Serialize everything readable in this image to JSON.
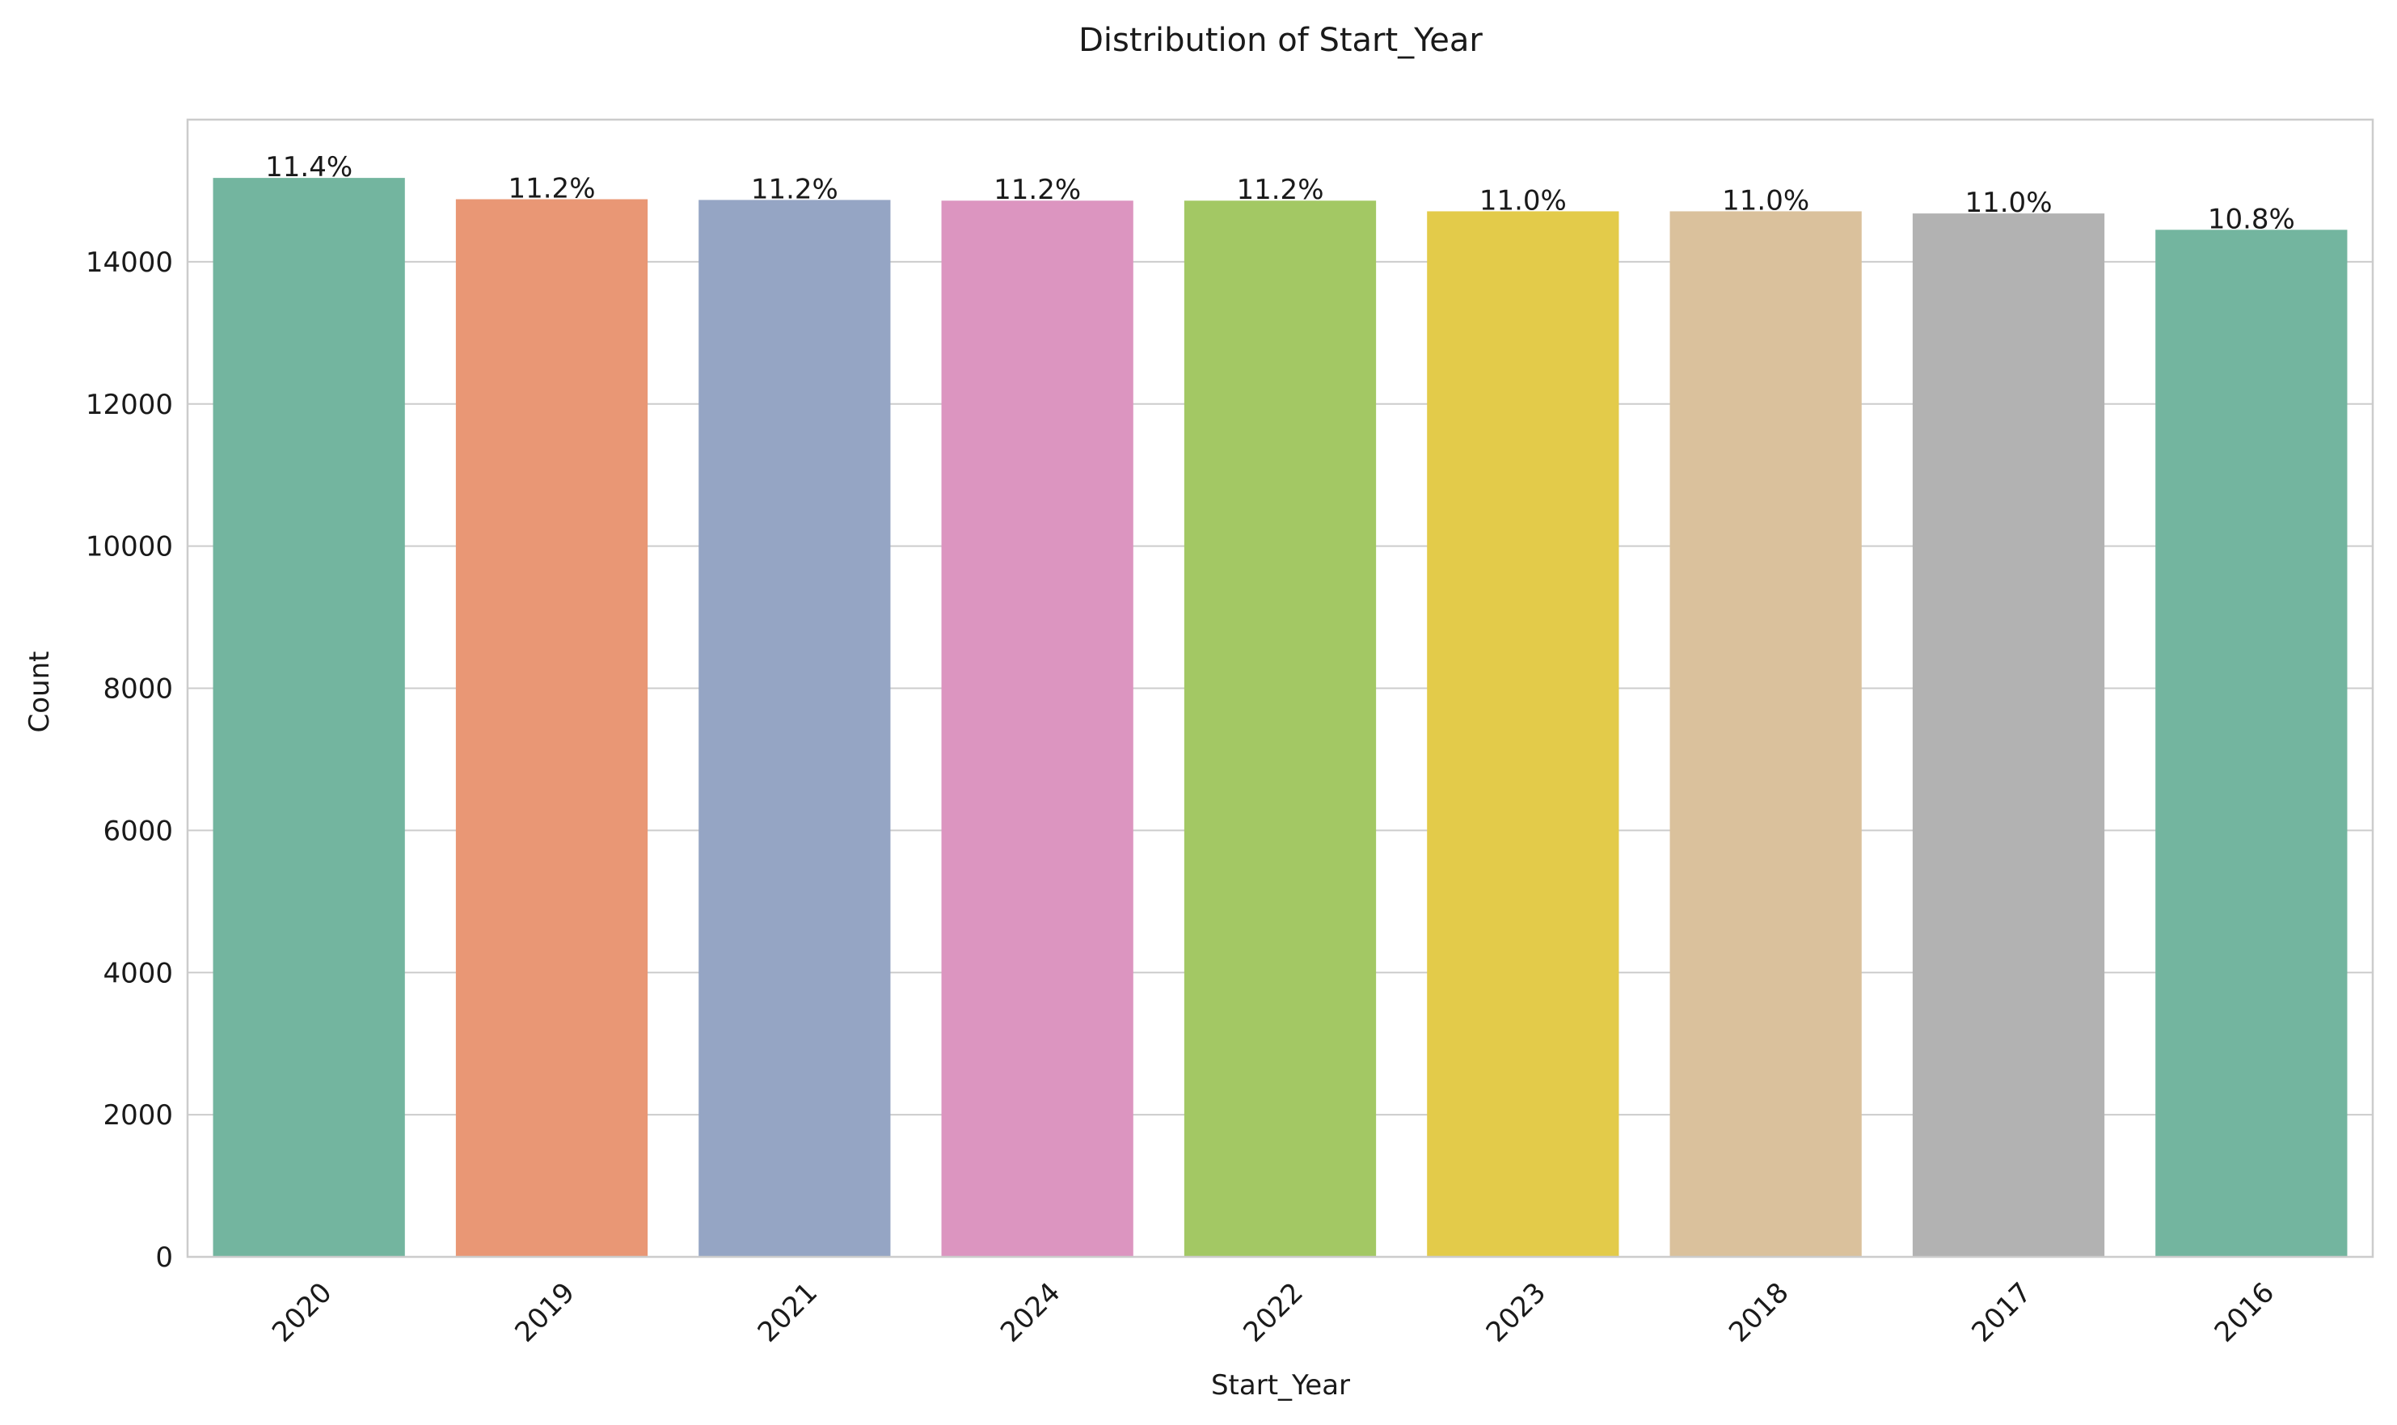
{
  "chart_data": {
    "type": "bar",
    "title": "Distribution of Start_Year",
    "xlabel": "Start_Year",
    "ylabel": "Count",
    "categories": [
      "2020",
      "2019",
      "2021",
      "2024",
      "2022",
      "2023",
      "2018",
      "2017",
      "2016"
    ],
    "values": [
      15180,
      14880,
      14870,
      14860,
      14860,
      14710,
      14710,
      14680,
      14450
    ],
    "percent_labels": [
      "11.4%",
      "11.2%",
      "11.2%",
      "11.2%",
      "11.2%",
      "11.0%",
      "11.0%",
      "11.0%",
      "10.8%"
    ],
    "colors": [
      "#73b59f",
      "#e99775",
      "#95a5c4",
      "#dc95c0",
      "#a3c864",
      "#e3cb4a",
      "#dac19c",
      "#b2b2b2",
      "#73b59f"
    ],
    "yticks": [
      0,
      2000,
      4000,
      6000,
      8000,
      10000,
      12000,
      14000
    ],
    "ylim": [
      0,
      16000
    ],
    "grid": true,
    "grid_axis": "y",
    "xtick_rotation_deg": 45
  }
}
